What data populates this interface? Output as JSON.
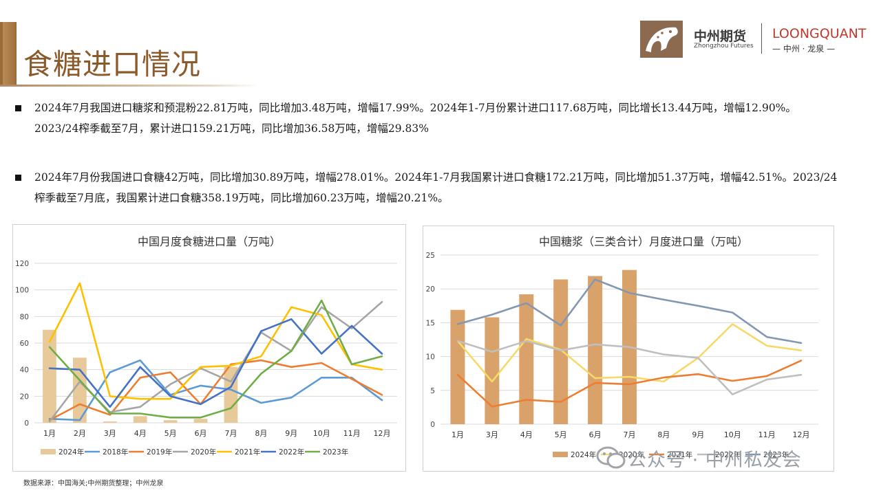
{
  "header": {
    "title": "食糖进口情况",
    "logo": {
      "cn": "中州期货",
      "en": "Zhongzhou Futures",
      "lq": "LOONGQUANT",
      "lq_sub": "— 中州 · 龙泉 —"
    }
  },
  "bullets": [
    "2024年7月我国进口糖浆和预混粉22.81万吨，同比增加3.48万吨，增幅17.99%。2024年1-7月份累计进口117.68万吨，同比增长13.44万吨，增幅12.90%。2023/24榨季截至7月，累计进口159.21万吨，同比增加36.58万吨，增幅29.83%",
    "2024年7月份我国进口食糖42万吨，同比增加30.89万吨，增幅278.01%。2024年1-7月我国累计进口食糖172.21万吨，同比增加51.37万吨，增幅42.51%。2023/24榨季截至7月底，我国累计进口食糖358.19万吨，同比增加60.23万吨，增幅20.21%。"
  ],
  "source": "数据来源：中国海关;中州期货整理；中州龙泉",
  "watermark": "公众号 · 中州私友会",
  "chart_data": [
    {
      "type": "bar",
      "title": "中国月度食糖进口量（万吨）",
      "categories": [
        "1月",
        "2月",
        "3月",
        "4月",
        "5月",
        "6月",
        "7月",
        "8月",
        "9月",
        "10月",
        "11月",
        "12月"
      ],
      "ylim": [
        0,
        120
      ],
      "yticks": [
        0,
        20,
        40,
        60,
        80,
        100,
        120
      ],
      "grid": true,
      "legend_position": "bottom",
      "series": [
        {
          "name": "2024年",
          "kind": "bar",
          "color": "#e8c99a",
          "values": [
            70,
            49,
            1,
            5,
            2,
            3,
            42,
            null,
            null,
            null,
            null,
            null
          ]
        },
        {
          "name": "2018年",
          "kind": "line",
          "color": "#5b9bd5",
          "values": [
            3,
            2,
            38,
            47,
            21,
            28,
            25,
            15,
            19,
            34,
            34,
            17
          ]
        },
        {
          "name": "2019年",
          "kind": "line",
          "color": "#ed7d31",
          "values": [
            2,
            14,
            6,
            34,
            38,
            14,
            44,
            47,
            42,
            45,
            33,
            21
          ]
        },
        {
          "name": "2020年",
          "kind": "line",
          "color": "#a5a5a5",
          "values": [
            1,
            31,
            8,
            12,
            29,
            41,
            31,
            68,
            54,
            87,
            71,
            91
          ]
        },
        {
          "name": "2021年",
          "kind": "line",
          "color": "#ffc000",
          "values": [
            61,
            105,
            20,
            18,
            18,
            42,
            43,
            50,
            87,
            81,
            44,
            40
          ]
        },
        {
          "name": "2022年",
          "kind": "line",
          "color": "#4472c4",
          "values": [
            41,
            40,
            12,
            42,
            20,
            14,
            27,
            69,
            78,
            52,
            73,
            52
          ]
        },
        {
          "name": "2023年",
          "kind": "line",
          "color": "#70ad47",
          "values": [
            57,
            32,
            7,
            7,
            4,
            4,
            11,
            37,
            54,
            92,
            44,
            50
          ]
        }
      ]
    },
    {
      "type": "bar",
      "title": "中国糖浆（三类合计）月度进口量（万吨）",
      "categories": [
        "1月",
        "3月",
        "4月",
        "5月",
        "6月",
        "7月",
        "8月",
        "9月",
        "10月",
        "11月",
        "12月"
      ],
      "ylim": [
        0,
        25
      ],
      "yticks": [
        0,
        5,
        10,
        15,
        20,
        25
      ],
      "grid": true,
      "legend_position": "bottom",
      "series": [
        {
          "name": "2024年",
          "kind": "bar",
          "color": "#d9a26a",
          "values": [
            16.9,
            15.8,
            19.2,
            21.4,
            21.9,
            22.8,
            null,
            null,
            null,
            null,
            null
          ]
        },
        {
          "name": "2020年",
          "kind": "line",
          "color": "#f7d96a",
          "values": [
            12.3,
            6.3,
            12.6,
            11.0,
            6.8,
            7.0,
            6.3,
            9.8,
            14.8,
            11.6,
            10.9
          ]
        },
        {
          "name": "2021年",
          "kind": "line",
          "color": "#ed7d31",
          "values": [
            7.3,
            2.6,
            3.6,
            3.3,
            6.1,
            5.9,
            6.9,
            7.4,
            6.4,
            7.1,
            9.4
          ]
        },
        {
          "name": "2022年",
          "kind": "line",
          "color": "#bfbfbf",
          "values": [
            12.3,
            10.7,
            12.3,
            10.9,
            11.8,
            11.4,
            10.3,
            9.8,
            4.4,
            6.6,
            7.3
          ]
        },
        {
          "name": "2023年",
          "kind": "line",
          "color": "#8497b0",
          "values": [
            14.8,
            16.2,
            17.9,
            14.6,
            21.4,
            19.4,
            18.4,
            17.5,
            16.5,
            12.9,
            12.0
          ]
        }
      ]
    }
  ]
}
